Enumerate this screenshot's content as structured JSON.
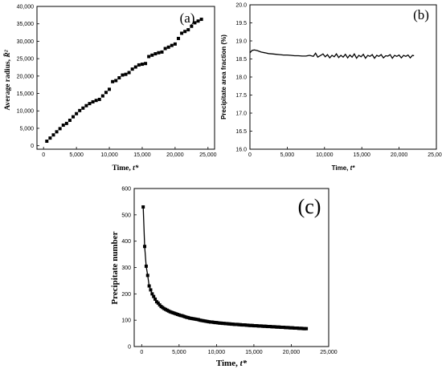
{
  "chart_data": [
    {
      "type": "scatter",
      "panel_label": "(a)",
      "xlabel_prefix": "Time, ",
      "xlabel_var": "t*",
      "ylabel_prefix": "Average radius, ",
      "ylabel_var": "R̄²",
      "xlim": [
        -1000,
        26000
      ],
      "ylim": [
        -1000,
        40000
      ],
      "xticks": [
        0,
        5000,
        10000,
        15000,
        20000,
        25000
      ],
      "xtick_labels": [
        "0",
        "5,000",
        "10,000",
        "15,000",
        "20,000",
        "25,000"
      ],
      "yticks": [
        0,
        5000,
        10000,
        15000,
        20000,
        25000,
        30000,
        35000,
        40000
      ],
      "ytick_labels": [
        "0",
        "5,000",
        "10,000",
        "15,000",
        "20,000",
        "25,000",
        "30,000",
        "35,000",
        "40,000"
      ],
      "series": [
        {
          "marker": "square",
          "line": false,
          "x": [
            500,
            1000,
            1500,
            2000,
            2500,
            3000,
            3500,
            4000,
            4500,
            5000,
            5500,
            6000,
            6500,
            7000,
            7500,
            8000,
            8500,
            9000,
            9500,
            10000,
            10500,
            11000,
            11500,
            12000,
            12500,
            13000,
            13500,
            14000,
            14500,
            15000,
            15500,
            16000,
            16500,
            17000,
            17500,
            18000,
            18500,
            19000,
            19500,
            20000,
            20500,
            21000,
            21500,
            22000,
            22500,
            23000,
            23500,
            24000
          ],
          "y": [
            1300,
            2200,
            3100,
            4000,
            4900,
            5900,
            6400,
            7300,
            8300,
            9200,
            10100,
            10800,
            11500,
            12100,
            12600,
            13000,
            13300,
            14300,
            15300,
            16200,
            18400,
            18700,
            19500,
            20300,
            20500,
            21000,
            22000,
            22600,
            23200,
            23400,
            23600,
            25600,
            26000,
            26400,
            26700,
            26900,
            27900,
            28300,
            28800,
            29200,
            30800,
            32300,
            32800,
            33300,
            34300,
            35300,
            35800,
            36300
          ]
        }
      ]
    },
    {
      "type": "line",
      "panel_label": "(b)",
      "xlabel_prefix": "Time, ",
      "xlabel_var": "t*",
      "ylabel": "Precipitate area fraction (%)",
      "xlim": [
        0,
        25000
      ],
      "ylim": [
        16.0,
        20.0
      ],
      "xticks": [
        0,
        5000,
        10000,
        15000,
        20000,
        25000
      ],
      "xtick_labels": [
        "0",
        "5,000",
        "10,000",
        "15,000",
        "20,000",
        "25,000"
      ],
      "yticks": [
        16.0,
        16.5,
        17.0,
        17.5,
        18.0,
        18.5,
        19.0,
        19.5,
        20.0
      ],
      "ytick_labels": [
        "16.0",
        "16.5",
        "17.0",
        "17.5",
        "18.0",
        "18.5",
        "19.0",
        "19.5",
        "20.0"
      ],
      "series": [
        {
          "marker": "none",
          "line": true,
          "x": [
            0,
            300,
            600,
            1000,
            1500,
            2000,
            2500,
            3000,
            3500,
            4000,
            4500,
            5000,
            5500,
            6000,
            6500,
            7000,
            7500,
            8000,
            8500,
            8800,
            9100,
            9500,
            9800,
            10100,
            10400,
            10700,
            11000,
            11300,
            11600,
            11900,
            12200,
            12500,
            12800,
            13100,
            13400,
            13700,
            14000,
            14300,
            14600,
            14900,
            15200,
            15500,
            15800,
            16100,
            16400,
            16700,
            17000,
            17300,
            17600,
            17900,
            18200,
            18500,
            18800,
            19100,
            19400,
            19700,
            20000,
            20300,
            20600,
            20900,
            21200,
            21500,
            21800,
            22000
          ],
          "y": [
            18.67,
            18.74,
            18.75,
            18.73,
            18.69,
            18.67,
            18.65,
            18.64,
            18.63,
            18.62,
            18.61,
            18.61,
            18.6,
            18.59,
            18.59,
            18.58,
            18.58,
            18.6,
            18.57,
            18.66,
            18.55,
            18.6,
            18.64,
            18.56,
            18.62,
            18.53,
            18.6,
            18.56,
            18.64,
            18.54,
            18.6,
            18.55,
            18.63,
            18.53,
            18.61,
            18.55,
            18.64,
            18.52,
            18.6,
            18.56,
            18.63,
            18.52,
            18.6,
            18.57,
            18.62,
            18.52,
            18.6,
            18.57,
            18.62,
            18.53,
            18.59,
            18.58,
            18.62,
            18.52,
            18.6,
            18.57,
            18.61,
            18.53,
            18.6,
            18.57,
            18.61,
            18.53,
            18.6,
            18.59
          ]
        }
      ]
    },
    {
      "type": "line",
      "panel_label": "(c)",
      "xlabel_prefix": "Time, ",
      "xlabel_var": "t*",
      "ylabel": "Precipitate number",
      "xlim": [
        -1000,
        25000
      ],
      "ylim": [
        0,
        600
      ],
      "xticks": [
        0,
        5000,
        10000,
        15000,
        20000,
        25000
      ],
      "xtick_labels": [
        "0",
        "5,000",
        "10,000",
        "15,000",
        "20,000",
        "25,000"
      ],
      "yticks": [
        0,
        100,
        200,
        300,
        400,
        500,
        600
      ],
      "ytick_labels": [
        "0",
        "100",
        "200",
        "300",
        "400",
        "500",
        "600"
      ],
      "series": [
        {
          "marker": "square",
          "line": true,
          "x": [
            200,
            400,
            600,
            800,
            1000,
            1200,
            1400,
            1600,
            1800,
            2000,
            2200,
            2400,
            2600,
            2800,
            3000,
            3200,
            3400,
            3600,
            3800,
            4000,
            4200,
            4400,
            4600,
            4800,
            5000,
            5200,
            5400,
            5600,
            5800,
            6000,
            6200,
            6400,
            6600,
            6800,
            7000,
            7200,
            7400,
            7600,
            7800,
            8000,
            8200,
            8400,
            8600,
            8800,
            9000,
            9200,
            9400,
            9600,
            9800,
            10000,
            10200,
            10400,
            10600,
            10800,
            11000,
            11200,
            11400,
            11600,
            11800,
            12000,
            12200,
            12400,
            12600,
            12800,
            13000,
            13200,
            13400,
            13600,
            13800,
            14000,
            14200,
            14400,
            14600,
            14800,
            15000,
            15200,
            15400,
            15600,
            15800,
            16000,
            16200,
            16400,
            16600,
            16800,
            17000,
            17200,
            17400,
            17600,
            17800,
            18000,
            18200,
            18400,
            18600,
            18800,
            19000,
            19200,
            19400,
            19600,
            19800,
            20000,
            20200,
            20400,
            20600,
            20800,
            21000,
            21200,
            21400,
            21600,
            21800,
            22000
          ],
          "y": [
            530,
            380,
            305,
            270,
            230,
            215,
            200,
            190,
            180,
            170,
            165,
            158,
            152,
            148,
            144,
            141,
            138,
            135,
            132,
            130,
            128,
            126,
            124,
            122,
            120,
            118,
            117,
            115,
            113,
            111,
            110,
            108,
            107,
            106,
            105,
            104,
            103,
            102,
            100,
            99,
            98,
            97,
            96,
            95,
            94,
            93,
            93,
            92,
            91,
            91,
            90,
            89,
            89,
            88,
            88,
            87,
            87,
            86,
            86,
            85,
            85,
            84,
            84,
            84,
            83,
            83,
            82,
            82,
            82,
            81,
            81,
            80,
            80,
            80,
            79,
            79,
            79,
            78,
            78,
            78,
            77,
            77,
            77,
            76,
            76,
            76,
            75,
            75,
            75,
            74,
            74,
            74,
            73,
            73,
            73,
            72,
            72,
            72,
            71,
            71,
            71,
            70,
            70,
            70,
            69,
            69,
            69,
            68,
            68,
            68
          ]
        }
      ]
    }
  ]
}
